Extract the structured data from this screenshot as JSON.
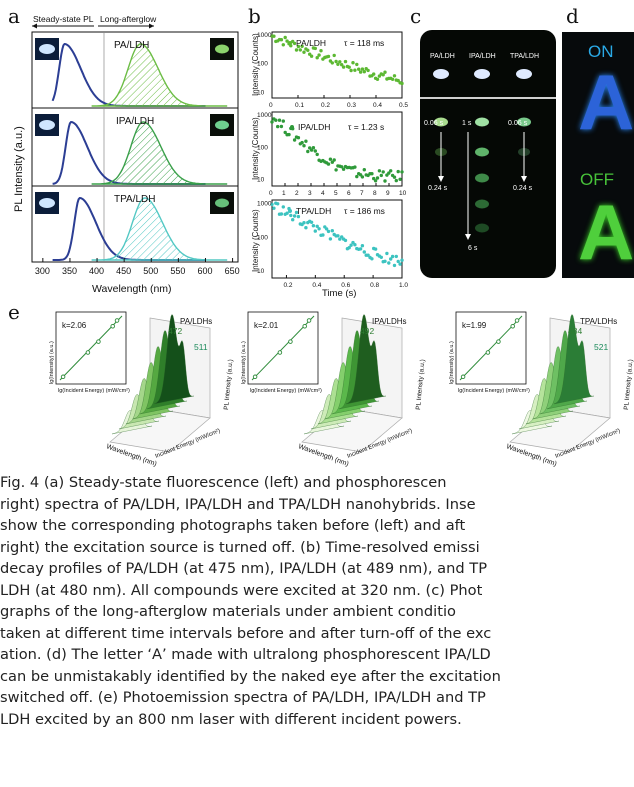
{
  "panels": {
    "a": {
      "letter": "a",
      "header_left": "Steady-state PL",
      "header_right": "Long-afterglow",
      "ylabel": "PL Intensity (a.u.)",
      "xlabel": "Wavelength (nm)",
      "xticks": [
        "300",
        "350",
        "400",
        "450",
        "500",
        "550",
        "600",
        "650"
      ],
      "rows": [
        {
          "label": "PA/LDH",
          "fl_peak_nm": 340,
          "ph_peak_nm": 480
        },
        {
          "label": "IPA/LDH",
          "fl_peak_nm": 352,
          "ph_peak_nm": 485
        },
        {
          "label": "TPA/LDH",
          "fl_peak_nm": 368,
          "ph_peak_nm": 488
        }
      ]
    },
    "b": {
      "letter": "b",
      "ylabel": "Intensity (Counts)",
      "xlabel": "Time (s)",
      "rows": [
        {
          "label": "PA/LDH",
          "tau": "τ = 118 ms",
          "color": "#5cb832",
          "xticks": [
            "0",
            "0.1",
            "0.2",
            "0.3",
            "0.4",
            "0.5"
          ],
          "xmax": 0.5
        },
        {
          "label": "IPA/LDH",
          "tau": "τ = 1.23 s",
          "color": "#2f9a3a",
          "xticks": [
            "0",
            "1",
            "2",
            "3",
            "4",
            "5",
            "6",
            "7",
            "8",
            "9",
            "10"
          ],
          "xmax": 10
        },
        {
          "label": "TPA/LDH",
          "tau": "τ = 186 ms",
          "color": "#3cc3c0",
          "xticks": [
            "0.2",
            "0.4",
            "0.6",
            "0.8",
            "1.0"
          ],
          "xmax": 1.0
        }
      ],
      "yticks": [
        "10",
        "100",
        "1000"
      ]
    },
    "c": {
      "letter": "c",
      "top_labels": [
        "PA/LDH",
        "IPA/LDH",
        "TPA/LDH"
      ],
      "times": [
        "0.06 s",
        "0.24 s",
        "1 s",
        "6 s",
        "0.06 s",
        "0.24 s"
      ]
    },
    "d": {
      "letter": "d",
      "on_label": "ON",
      "off_label": "OFF",
      "glyph": "A"
    },
    "e": {
      "letter": "e",
      "inset_ylabel": "lg(Intensity) (a.u.)",
      "inset_xlabel": "lg(Incident Energy) (mW/cm²)",
      "axis_wavelength": "Wavelength (nm)",
      "axis_energy": "Incident Energy (mW/cm²)",
      "axis_pl": "PL Intensity (a.u.)",
      "plots": [
        {
          "title": "PA/LDHs",
          "slope": "k=2.06",
          "peaks": [
            "472",
            "511"
          ]
        },
        {
          "title": "IPA/LDHs",
          "slope": "k=2.01",
          "peaks": [
            "492"
          ]
        },
        {
          "title": "TPA/LDHs",
          "slope": "k=1.99",
          "peaks": [
            "484",
            "521"
          ]
        }
      ]
    }
  },
  "caption": {
    "lines": [
      "Fig. 4  (a) Steady-state fluorescence (left) and phosphorescen",
      "right) spectra of PA/LDH, IPA/LDH and TPA/LDH nanohybrids. Inse",
      "show the corresponding photographs taken before (left) and aft",
      "right) the excitation source is turned off. (b) Time-resolved emissi",
      "decay profiles of PA/LDH (at 475 nm), IPA/LDH (at 489 nm), and TP",
      "LDH (at 480 nm). All compounds were excited at 320 nm. (c) Phot",
      "graphs of the long-afterglow materials under ambient conditio",
      "taken at different time intervals before and after turn-off of the exc",
      "ation. (d) The letter ‘A’ made with ultralong phosphorescent IPA/LD",
      "can be unmistakably identified by the naked eye after the excitation",
      "switched off. (e) Photoemission spectra of PA/LDH, IPA/LDH and TP",
      "LDH excited by an 800 nm laser with different incident powers."
    ]
  },
  "colors": {
    "fluorescence": "#2c3e94",
    "phos_a": "#6cbd45",
    "phos_b": "#3aa04a",
    "phos_c": "#53c8c4"
  }
}
